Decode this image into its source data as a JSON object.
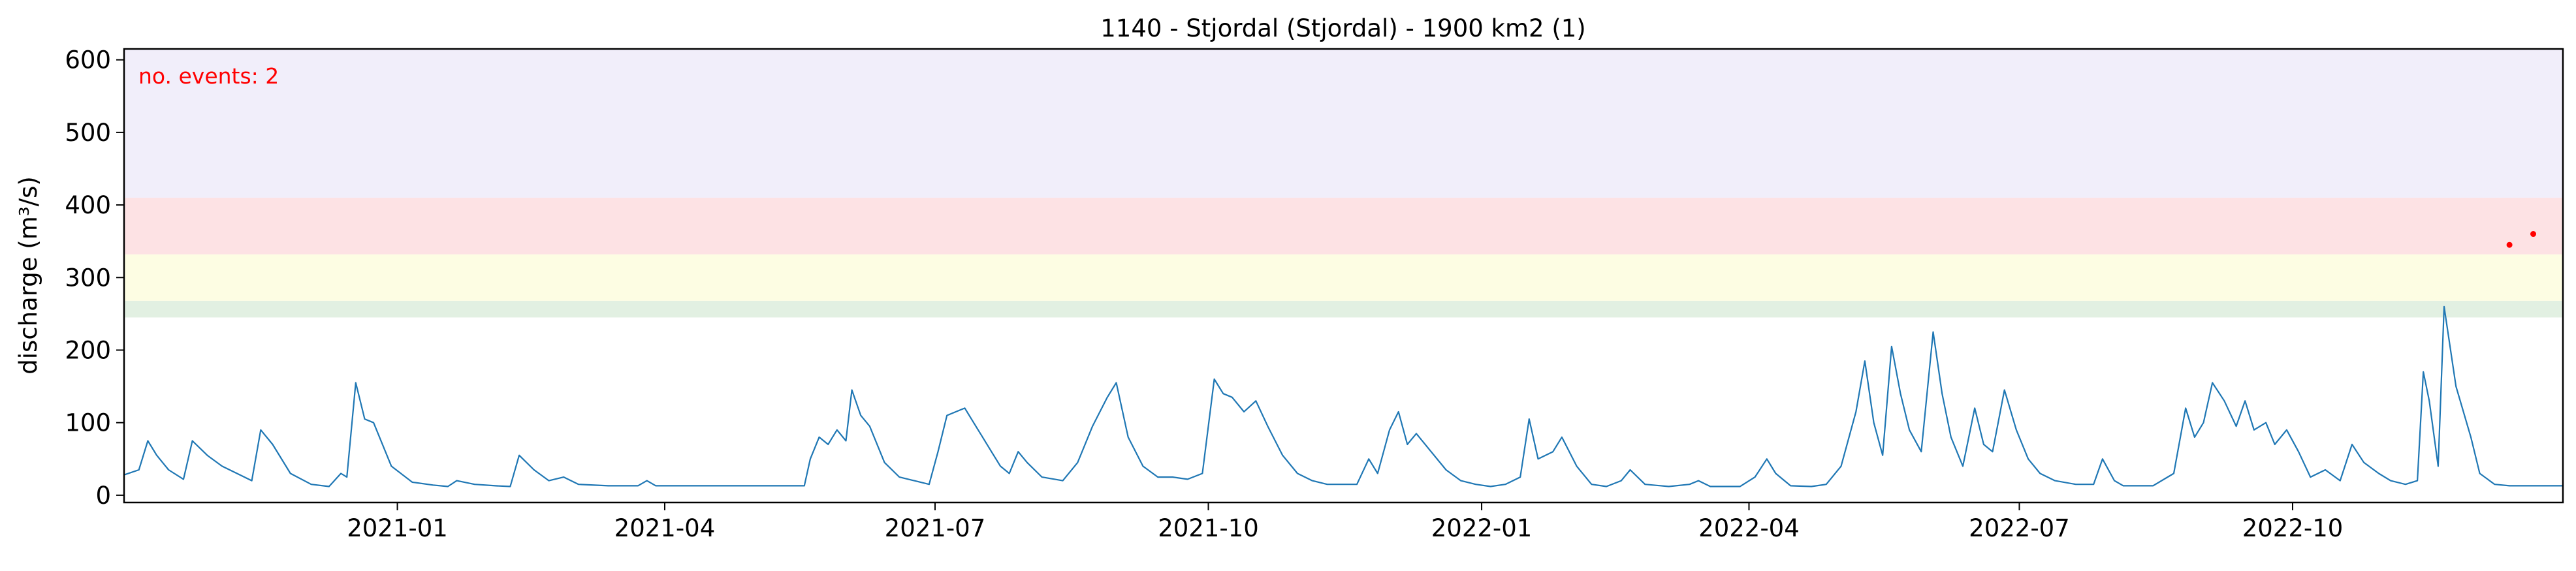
{
  "chart_data": {
    "type": "line",
    "title": "1140 - Stjordal (Stjordal) - 1900 km2 (1)",
    "xlabel": "",
    "ylabel": "discharge (m³/s)",
    "x_range": [
      "2020-10-01",
      "2022-12-31"
    ],
    "ylim": [
      -10,
      615
    ],
    "yticks": [
      0,
      100,
      200,
      300,
      400,
      500,
      600
    ],
    "ytick_labels": [
      "0",
      "100",
      "200",
      "300",
      "400",
      "500",
      "600"
    ],
    "xticks": [
      "2021-01-01",
      "2021-04-01",
      "2021-07-01",
      "2021-10-01",
      "2022-01-01",
      "2022-04-01",
      "2022-07-01",
      "2022-10-01"
    ],
    "xtick_labels": [
      "2021-01",
      "2021-04",
      "2021-07",
      "2021-10",
      "2022-01",
      "2022-04",
      "2022-07",
      "2022-10"
    ],
    "grid": false,
    "annotation": {
      "text": "no. events: 2",
      "color": "#ff0000",
      "placement": "top-left"
    },
    "threshold_bands": [
      {
        "from": 245,
        "to": 268,
        "color": "#e2f0e2"
      },
      {
        "from": 268,
        "to": 332,
        "color": "#fdfde3"
      },
      {
        "from": 332,
        "to": 410,
        "color": "#fde2e4"
      },
      {
        "from": 410,
        "to": 615,
        "color": "#f1eefa"
      }
    ],
    "series": [
      {
        "color": "#1f77b4",
        "points": [
          [
            "2020-10-01",
            28
          ],
          [
            "2020-10-06",
            35
          ],
          [
            "2020-10-09",
            75
          ],
          [
            "2020-10-12",
            55
          ],
          [
            "2020-10-16",
            35
          ],
          [
            "2020-10-21",
            22
          ],
          [
            "2020-10-24",
            75
          ],
          [
            "2020-10-29",
            55
          ],
          [
            "2020-11-03",
            40
          ],
          [
            "2020-11-08",
            30
          ],
          [
            "2020-11-13",
            20
          ],
          [
            "2020-11-16",
            90
          ],
          [
            "2020-11-20",
            70
          ],
          [
            "2020-11-26",
            30
          ],
          [
            "2020-12-03",
            15
          ],
          [
            "2020-12-09",
            12
          ],
          [
            "2020-12-13",
            30
          ],
          [
            "2020-12-15",
            25
          ],
          [
            "2020-12-18",
            155
          ],
          [
            "2020-12-21",
            105
          ],
          [
            "2020-12-24",
            100
          ],
          [
            "2020-12-30",
            40
          ],
          [
            "2021-01-06",
            18
          ],
          [
            "2021-01-13",
            14
          ],
          [
            "2021-01-18",
            12
          ],
          [
            "2021-01-21",
            20
          ],
          [
            "2021-01-27",
            15
          ],
          [
            "2021-02-03",
            13
          ],
          [
            "2021-02-08",
            12
          ],
          [
            "2021-02-11",
            55
          ],
          [
            "2021-02-16",
            35
          ],
          [
            "2021-02-21",
            20
          ],
          [
            "2021-02-26",
            25
          ],
          [
            "2021-03-03",
            15
          ],
          [
            "2021-03-13",
            13
          ],
          [
            "2021-03-23",
            13
          ],
          [
            "2021-03-26",
            20
          ],
          [
            "2021-03-29",
            13
          ],
          [
            "2021-04-13",
            13
          ],
          [
            "2021-04-28",
            13
          ],
          [
            "2021-05-08",
            13
          ],
          [
            "2021-05-18",
            13
          ],
          [
            "2021-05-20",
            50
          ],
          [
            "2021-05-23",
            80
          ],
          [
            "2021-05-26",
            70
          ],
          [
            "2021-05-29",
            90
          ],
          [
            "2021-06-01",
            75
          ],
          [
            "2021-06-03",
            145
          ],
          [
            "2021-06-06",
            110
          ],
          [
            "2021-06-09",
            95
          ],
          [
            "2021-06-14",
            45
          ],
          [
            "2021-06-19",
            25
          ],
          [
            "2021-06-24",
            20
          ],
          [
            "2021-06-29",
            15
          ],
          [
            "2021-07-02",
            60
          ],
          [
            "2021-07-05",
            110
          ],
          [
            "2021-07-08",
            115
          ],
          [
            "2021-07-11",
            120
          ],
          [
            "2021-07-14",
            100
          ],
          [
            "2021-07-17",
            80
          ],
          [
            "2021-07-20",
            60
          ],
          [
            "2021-07-23",
            40
          ],
          [
            "2021-07-26",
            30
          ],
          [
            "2021-07-29",
            60
          ],
          [
            "2021-08-01",
            45
          ],
          [
            "2021-08-06",
            25
          ],
          [
            "2021-08-13",
            20
          ],
          [
            "2021-08-18",
            45
          ],
          [
            "2021-08-23",
            95
          ],
          [
            "2021-08-28",
            135
          ],
          [
            "2021-08-31",
            155
          ],
          [
            "2021-09-04",
            80
          ],
          [
            "2021-09-09",
            40
          ],
          [
            "2021-09-14",
            25
          ],
          [
            "2021-09-19",
            25
          ],
          [
            "2021-09-24",
            22
          ],
          [
            "2021-09-29",
            30
          ],
          [
            "2021-10-03",
            160
          ],
          [
            "2021-10-06",
            140
          ],
          [
            "2021-10-09",
            135
          ],
          [
            "2021-10-13",
            115
          ],
          [
            "2021-10-17",
            130
          ],
          [
            "2021-10-21",
            95
          ],
          [
            "2021-10-26",
            55
          ],
          [
            "2021-10-31",
            30
          ],
          [
            "2021-11-05",
            20
          ],
          [
            "2021-11-10",
            15
          ],
          [
            "2021-11-20",
            15
          ],
          [
            "2021-11-24",
            50
          ],
          [
            "2021-11-27",
            30
          ],
          [
            "2021-12-01",
            90
          ],
          [
            "2021-12-04",
            115
          ],
          [
            "2021-12-07",
            70
          ],
          [
            "2021-12-10",
            85
          ],
          [
            "2021-12-15",
            60
          ],
          [
            "2021-12-20",
            35
          ],
          [
            "2021-12-25",
            20
          ],
          [
            "2021-12-30",
            15
          ],
          [
            "2022-01-04",
            12
          ],
          [
            "2022-01-09",
            15
          ],
          [
            "2022-01-14",
            25
          ],
          [
            "2022-01-17",
            105
          ],
          [
            "2022-01-20",
            50
          ],
          [
            "2022-01-25",
            60
          ],
          [
            "2022-01-28",
            80
          ],
          [
            "2022-02-02",
            40
          ],
          [
            "2022-02-07",
            15
          ],
          [
            "2022-02-12",
            12
          ],
          [
            "2022-02-17",
            20
          ],
          [
            "2022-02-20",
            35
          ],
          [
            "2022-02-25",
            15
          ],
          [
            "2022-03-05",
            12
          ],
          [
            "2022-03-12",
            15
          ],
          [
            "2022-03-15",
            20
          ],
          [
            "2022-03-19",
            12
          ],
          [
            "2022-03-29",
            12
          ],
          [
            "2022-04-03",
            25
          ],
          [
            "2022-04-07",
            50
          ],
          [
            "2022-04-10",
            30
          ],
          [
            "2022-04-15",
            13
          ],
          [
            "2022-04-22",
            12
          ],
          [
            "2022-04-27",
            15
          ],
          [
            "2022-05-02",
            40
          ],
          [
            "2022-05-07",
            115
          ],
          [
            "2022-05-10",
            185
          ],
          [
            "2022-05-13",
            100
          ],
          [
            "2022-05-16",
            55
          ],
          [
            "2022-05-19",
            205
          ],
          [
            "2022-05-22",
            140
          ],
          [
            "2022-05-25",
            90
          ],
          [
            "2022-05-29",
            60
          ],
          [
            "2022-06-02",
            225
          ],
          [
            "2022-06-05",
            140
          ],
          [
            "2022-06-08",
            80
          ],
          [
            "2022-06-12",
            40
          ],
          [
            "2022-06-16",
            120
          ],
          [
            "2022-06-19",
            70
          ],
          [
            "2022-06-22",
            60
          ],
          [
            "2022-06-26",
            145
          ],
          [
            "2022-06-30",
            90
          ],
          [
            "2022-07-04",
            50
          ],
          [
            "2022-07-08",
            30
          ],
          [
            "2022-07-13",
            20
          ],
          [
            "2022-07-20",
            15
          ],
          [
            "2022-07-26",
            15
          ],
          [
            "2022-07-29",
            50
          ],
          [
            "2022-08-02",
            20
          ],
          [
            "2022-08-05",
            13
          ],
          [
            "2022-08-15",
            13
          ],
          [
            "2022-08-22",
            30
          ],
          [
            "2022-08-26",
            120
          ],
          [
            "2022-08-29",
            80
          ],
          [
            "2022-09-01",
            100
          ],
          [
            "2022-09-04",
            155
          ],
          [
            "2022-09-08",
            130
          ],
          [
            "2022-09-12",
            95
          ],
          [
            "2022-09-15",
            130
          ],
          [
            "2022-09-18",
            90
          ],
          [
            "2022-09-22",
            100
          ],
          [
            "2022-09-25",
            70
          ],
          [
            "2022-09-29",
            90
          ],
          [
            "2022-10-03",
            60
          ],
          [
            "2022-10-07",
            25
          ],
          [
            "2022-10-12",
            35
          ],
          [
            "2022-10-17",
            20
          ],
          [
            "2022-10-21",
            70
          ],
          [
            "2022-10-25",
            45
          ],
          [
            "2022-10-30",
            30
          ],
          [
            "2022-11-03",
            20
          ],
          [
            "2022-11-08",
            15
          ],
          [
            "2022-11-12",
            20
          ],
          [
            "2022-11-14",
            170
          ],
          [
            "2022-11-16",
            130
          ],
          [
            "2022-11-19",
            40
          ],
          [
            "2022-11-21",
            260
          ],
          [
            "2022-11-25",
            150
          ],
          [
            "2022-11-30",
            80
          ],
          [
            "2022-12-03",
            30
          ],
          [
            "2022-12-08",
            15
          ],
          [
            "2022-12-13",
            13
          ],
          [
            "2022-12-20",
            13
          ],
          [
            "2022-12-31",
            13
          ]
        ]
      }
    ],
    "events": [
      {
        "x": "2022-12-13",
        "y": 345
      },
      {
        "x": "2022-12-21",
        "y": 360
      }
    ],
    "x_axis_note": "tick labels printed",
    "colors": {
      "axis": "#000000",
      "line": "#1f77b4",
      "event": "#ff0000"
    }
  }
}
